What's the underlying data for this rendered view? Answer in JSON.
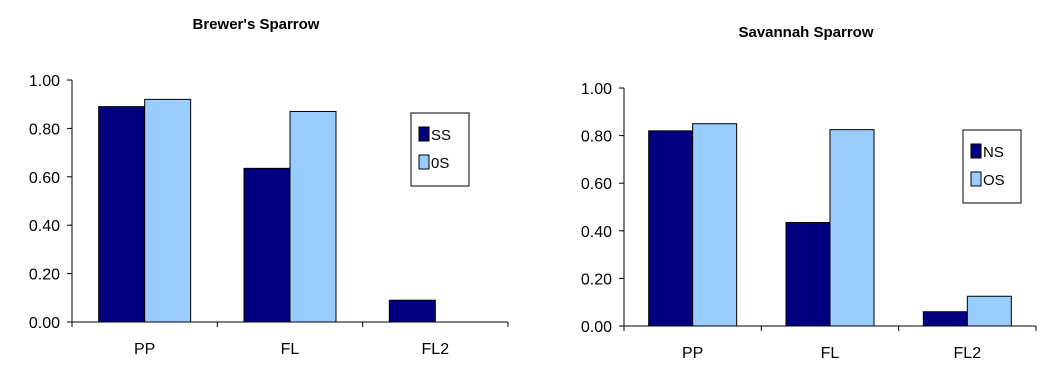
{
  "colors": {
    "dark": "#000080",
    "light": "#99ccff",
    "axis": "#000000"
  },
  "chart_data": [
    {
      "type": "bar",
      "title": "Brewer's Sparrow",
      "categories": [
        "PP",
        "FL",
        "FL2"
      ],
      "ylim": [
        0,
        1
      ],
      "yticks": [
        "0.00",
        "0.20",
        "0.40",
        "0.60",
        "0.80",
        "1.00"
      ],
      "legend_position": "top-right",
      "series": [
        {
          "name": "SS",
          "values": [
            0.89,
            0.635,
            0.09
          ]
        },
        {
          "name": "0S",
          "values": [
            0.92,
            0.87,
            0
          ]
        }
      ]
    },
    {
      "type": "bar",
      "title": "Savannah Sparrow",
      "categories": [
        "PP",
        "FL",
        "FL2"
      ],
      "ylim": [
        0,
        1
      ],
      "yticks": [
        "0.00",
        "0.20",
        "0.40",
        "0.60",
        "0.80",
        "1.00"
      ],
      "legend_position": "top-right",
      "series": [
        {
          "name": "NS",
          "values": [
            0.82,
            0.435,
            0.06
          ]
        },
        {
          "name": "OS",
          "values": [
            0.85,
            0.825,
            0.125
          ]
        }
      ]
    }
  ]
}
